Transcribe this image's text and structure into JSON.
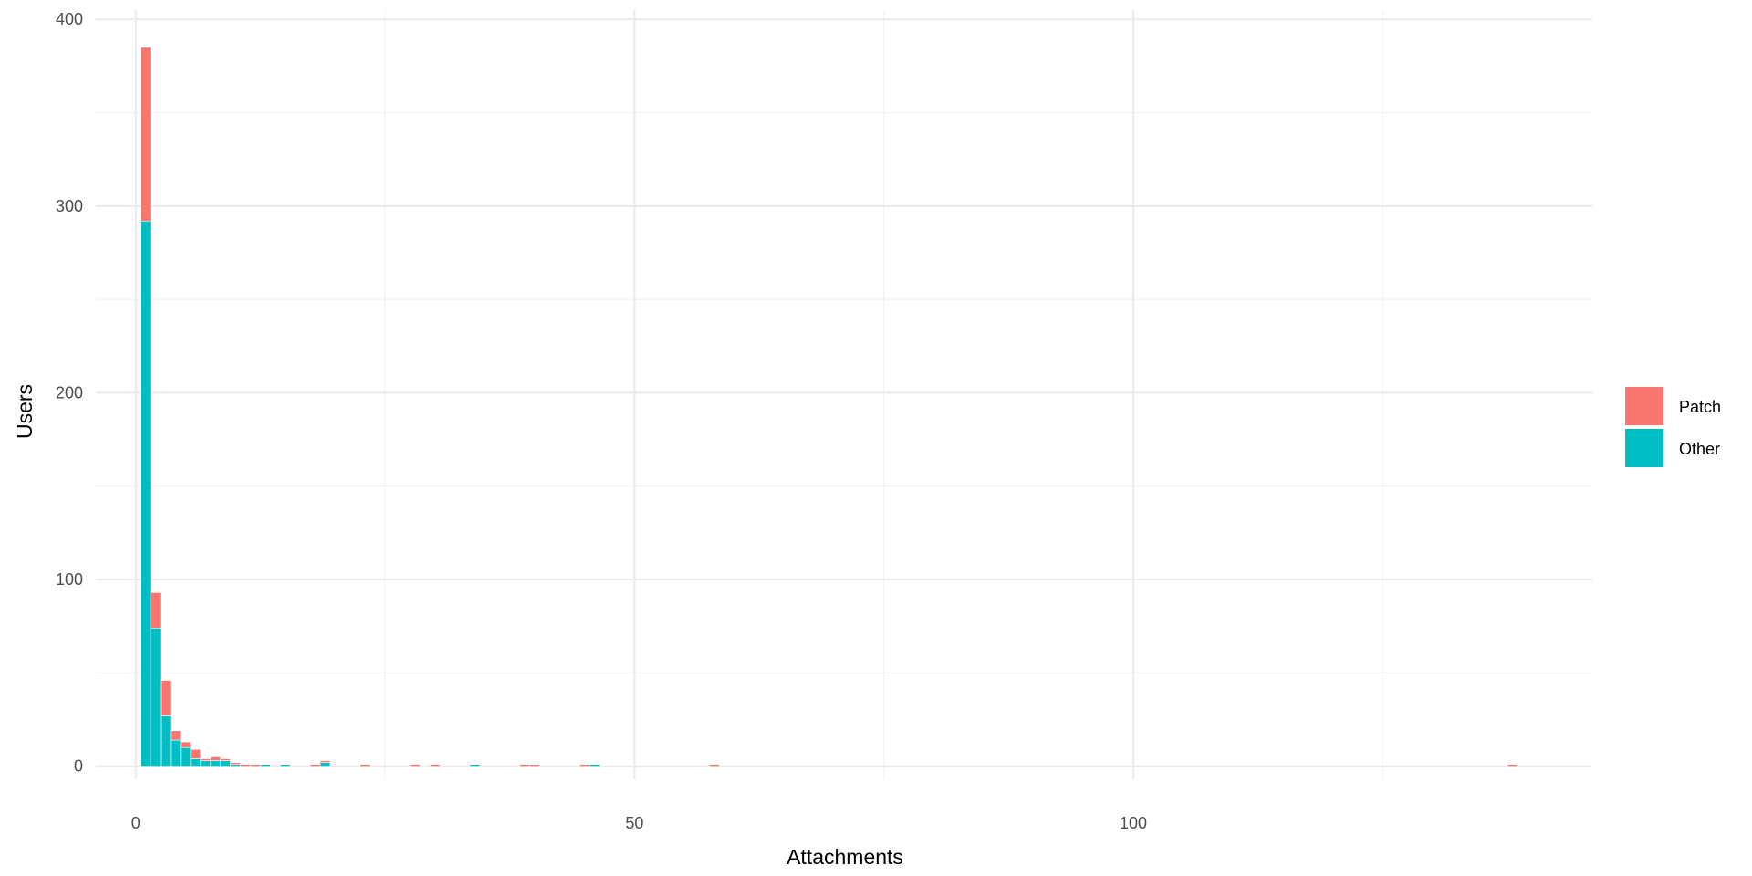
{
  "chart_data": {
    "type": "bar",
    "stacked": true,
    "xlabel": "Attachments",
    "ylabel": "Users",
    "xlim": [
      -4,
      146
    ],
    "ylim": [
      -7,
      405
    ],
    "x_ticks": [
      0,
      50,
      100
    ],
    "x_tick_labels": [
      "0",
      "50",
      "100"
    ],
    "x_minor_ticks": [
      25,
      75,
      125
    ],
    "y_ticks": [
      0,
      100,
      200,
      300,
      400
    ],
    "y_tick_labels": [
      "0",
      "100",
      "200",
      "300",
      "400"
    ],
    "y_minor_ticks": [
      50,
      150,
      250,
      350
    ],
    "grid": true,
    "legend_position": "right",
    "series": [
      {
        "name": "Patch",
        "color": "#F8766D",
        "points": [
          {
            "x": 1,
            "y": 93
          },
          {
            "x": 2,
            "y": 19
          },
          {
            "x": 3,
            "y": 19
          },
          {
            "x": 4,
            "y": 5
          },
          {
            "x": 5,
            "y": 3
          },
          {
            "x": 6,
            "y": 5
          },
          {
            "x": 7,
            "y": 1
          },
          {
            "x": 8,
            "y": 2
          },
          {
            "x": 9,
            "y": 1
          },
          {
            "x": 10,
            "y": 1
          },
          {
            "x": 11,
            "y": 1
          },
          {
            "x": 12,
            "y": 1
          },
          {
            "x": 18,
            "y": 1
          },
          {
            "x": 19,
            "y": 1
          },
          {
            "x": 23,
            "y": 1
          },
          {
            "x": 28,
            "y": 1
          },
          {
            "x": 30,
            "y": 1
          },
          {
            "x": 39,
            "y": 1
          },
          {
            "x": 40,
            "y": 1
          },
          {
            "x": 45,
            "y": 1
          },
          {
            "x": 58,
            "y": 1
          },
          {
            "x": 138,
            "y": 1
          }
        ]
      },
      {
        "name": "Other",
        "color": "#00BFC4",
        "points": [
          {
            "x": 1,
            "y": 292
          },
          {
            "x": 2,
            "y": 74
          },
          {
            "x": 3,
            "y": 27
          },
          {
            "x": 4,
            "y": 14
          },
          {
            "x": 5,
            "y": 10
          },
          {
            "x": 6,
            "y": 4
          },
          {
            "x": 7,
            "y": 3
          },
          {
            "x": 8,
            "y": 3
          },
          {
            "x": 9,
            "y": 3
          },
          {
            "x": 10,
            "y": 1
          },
          {
            "x": 13,
            "y": 1
          },
          {
            "x": 15,
            "y": 1
          },
          {
            "x": 19,
            "y": 2
          },
          {
            "x": 34,
            "y": 1
          },
          {
            "x": 46,
            "y": 1
          }
        ]
      }
    ]
  }
}
